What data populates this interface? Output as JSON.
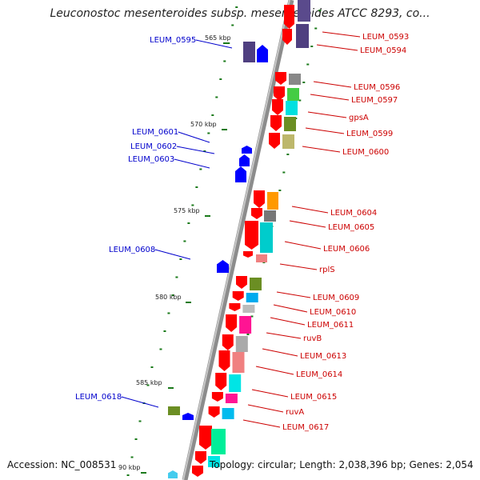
{
  "title": "Leuconostoc mesenteroides subsp. mesenteroides ATCC 8293, co...",
  "footer": {
    "accession": "Accession: NC_008531",
    "topology": "Topology: circular; Length: 2,038,396 bp; Genes: 2,054"
  },
  "colors": {
    "forward_strand": "#ff0000",
    "reverse_strand": "#0000ff",
    "backbone": "#8c8c8c",
    "tick": "#1a7a1a",
    "right_label": "#cc0000",
    "left_label": "#0000cc"
  },
  "scale_marks": [
    "565 kbp",
    "570 kbp",
    "575 kbp",
    "580 kbp",
    "585 kbp",
    "90 kbp"
  ],
  "left_labels": [
    "LEUM_0595",
    "LEUM_0601",
    "LEUM_0602",
    "LEUM_0603",
    "LEUM_0608",
    "LEUM_0618"
  ],
  "right_labels": [
    "LEUM_0593",
    "LEUM_0594",
    "LEUM_0596",
    "LEUM_0597",
    "gpsA",
    "LEUM_0599",
    "LEUM_0600",
    "LEUM_0604",
    "LEUM_0605",
    "LEUM_0606",
    "rplS",
    "LEUM_0609",
    "LEUM_0610",
    "LEUM_0611",
    "ruvB",
    "LEUM_0613",
    "LEUM_0614",
    "LEUM_0615",
    "ruvA",
    "LEUM_0617"
  ]
}
